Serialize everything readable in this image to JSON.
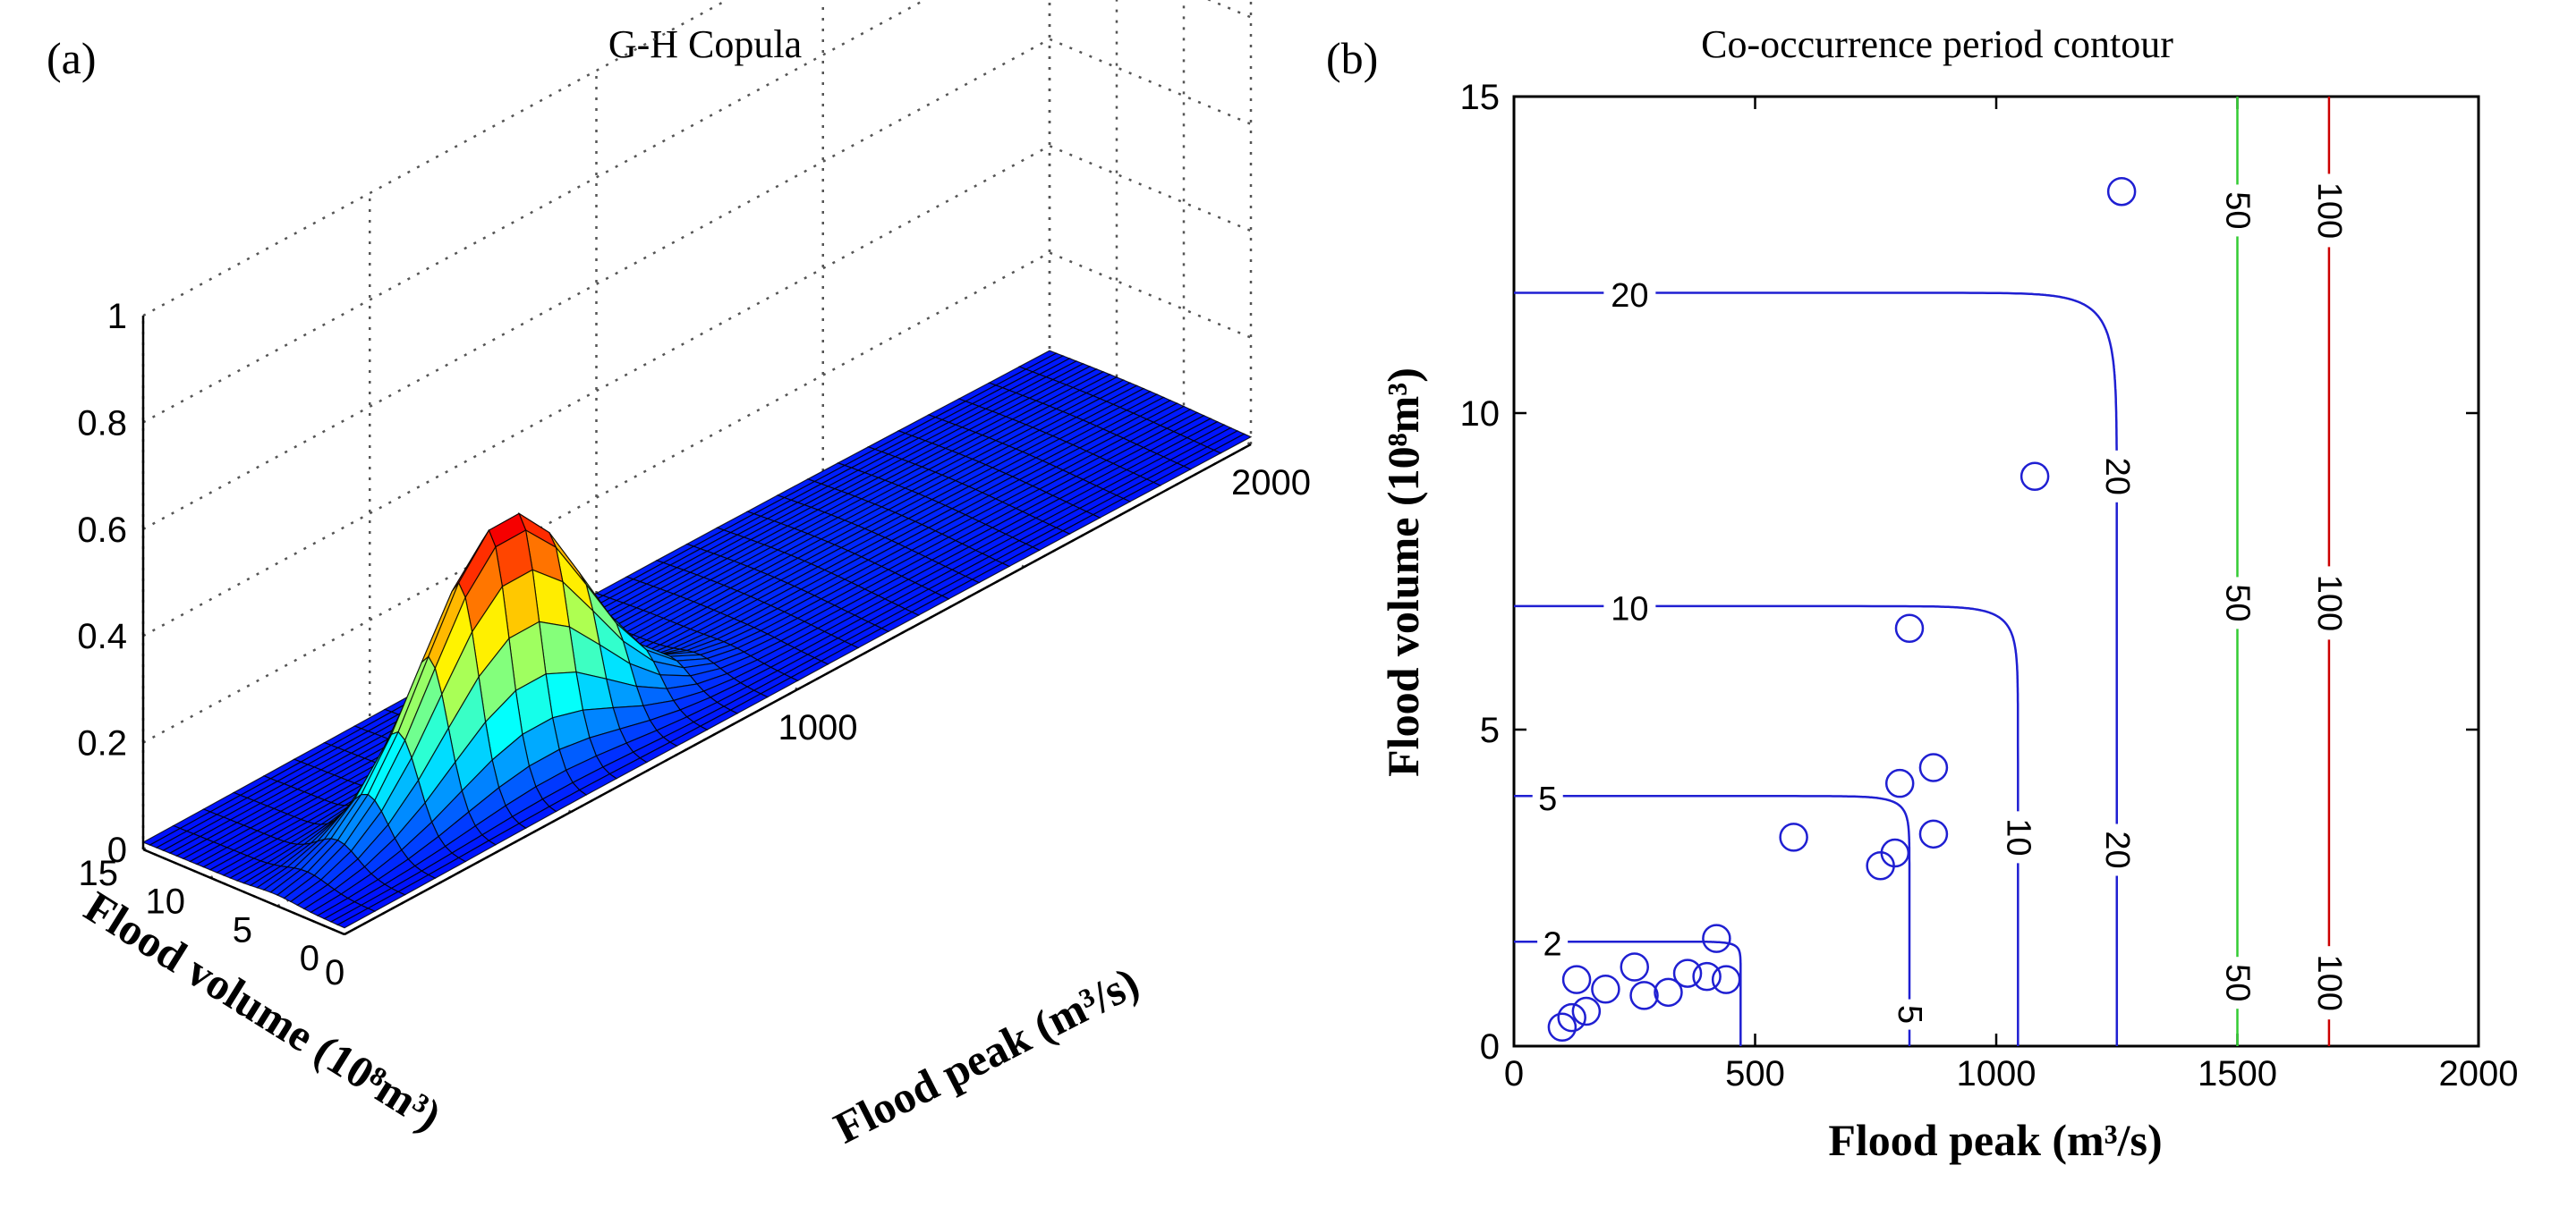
{
  "chart_data": [
    {
      "type": "surface3d",
      "panel_label": "(a)",
      "title": "G-H Copula",
      "xlabel": "Flood peak (m³/s)",
      "ylabel": "Flood volume (10⁸m³)",
      "zlabel": "",
      "xlim": [
        0,
        2000
      ],
      "ylim": [
        0,
        15
      ],
      "zlim": [
        0,
        1
      ],
      "xticks": [
        "0",
        "1000",
        "2000"
      ],
      "yticks": [
        "0",
        "5",
        "10",
        "15"
      ],
      "zticks": [
        "0",
        "0.2",
        "0.4",
        "0.6",
        "0.8",
        "1"
      ],
      "peak": {
        "flood_peak": 500,
        "flood_volume": 5,
        "density": 0.5
      },
      "colormap": "jet",
      "grid": true
    },
    {
      "type": "contour",
      "panel_label": "(b)",
      "title": "Co-occurrence period contour",
      "xlabel": "Flood peak (m³/s)",
      "ylabel": "Flood volume (10⁸m³)",
      "xlim": [
        0,
        2000
      ],
      "ylim": [
        0,
        15
      ],
      "xticks": [
        "0",
        "500",
        "1000",
        "1500",
        "2000"
      ],
      "yticks": [
        "0",
        "5",
        "10",
        "15"
      ],
      "contours": [
        {
          "level": 2,
          "label": "2",
          "color": "#1f1fd2",
          "x_asymptote": 470,
          "y_asymptote": 1.65,
          "labels_at": [
            [
              80,
              1.6
            ]
          ]
        },
        {
          "level": 5,
          "label": "5",
          "color": "#1f1fd2",
          "x_asymptote": 820,
          "y_asymptote": 3.95,
          "labels_at": [
            [
              70,
              3.9
            ],
            [
              820,
              0.5
            ]
          ]
        },
        {
          "level": 10,
          "label": "10",
          "color": "#1f1fd2",
          "x_asymptote": 1045,
          "y_asymptote": 6.95,
          "labels_at": [
            [
              240,
              6.9
            ],
            [
              1045,
              3.3
            ]
          ]
        },
        {
          "level": 20,
          "label": "20",
          "color": "#1f1fd2",
          "x_asymptote": 1250,
          "y_asymptote": 11.9,
          "labels_at": [
            [
              240,
              11.85
            ],
            [
              1250,
              9.0
            ],
            [
              1250,
              3.1
            ]
          ]
        },
        {
          "level": 50,
          "label": "50",
          "color": "#33cc33",
          "x_asymptote": 1500,
          "y_asymptote": null,
          "labels_at": [
            [
              1500,
              13.2
            ],
            [
              1500,
              7.0
            ],
            [
              1500,
              1.0
            ]
          ]
        },
        {
          "level": 100,
          "label": "100",
          "color": "#cc0000",
          "x_asymptote": 1690,
          "y_asymptote": null,
          "labels_at": [
            [
              1690,
              13.2
            ],
            [
              1690,
              7.0
            ],
            [
              1690,
              1.0
            ]
          ]
        }
      ],
      "observations": [
        {
          "flood_peak": 100,
          "flood_volume": 0.3
        },
        {
          "flood_peak": 120,
          "flood_volume": 0.45
        },
        {
          "flood_peak": 150,
          "flood_volume": 0.55
        },
        {
          "flood_peak": 130,
          "flood_volume": 1.05
        },
        {
          "flood_peak": 190,
          "flood_volume": 0.9
        },
        {
          "flood_peak": 250,
          "flood_volume": 1.25
        },
        {
          "flood_peak": 270,
          "flood_volume": 0.8
        },
        {
          "flood_peak": 320,
          "flood_volume": 0.85
        },
        {
          "flood_peak": 360,
          "flood_volume": 1.15
        },
        {
          "flood_peak": 400,
          "flood_volume": 1.1
        },
        {
          "flood_peak": 420,
          "flood_volume": 1.7
        },
        {
          "flood_peak": 440,
          "flood_volume": 1.05
        },
        {
          "flood_peak": 580,
          "flood_volume": 3.3
        },
        {
          "flood_peak": 760,
          "flood_volume": 2.85
        },
        {
          "flood_peak": 790,
          "flood_volume": 3.05
        },
        {
          "flood_peak": 800,
          "flood_volume": 4.15
        },
        {
          "flood_peak": 870,
          "flood_volume": 3.35
        },
        {
          "flood_peak": 870,
          "flood_volume": 4.4
        },
        {
          "flood_peak": 820,
          "flood_volume": 6.6
        },
        {
          "flood_peak": 1080,
          "flood_volume": 9.0
        },
        {
          "flood_peak": 1260,
          "flood_volume": 13.5
        }
      ],
      "marker_color": "#1f1fd2",
      "grid": false
    }
  ]
}
